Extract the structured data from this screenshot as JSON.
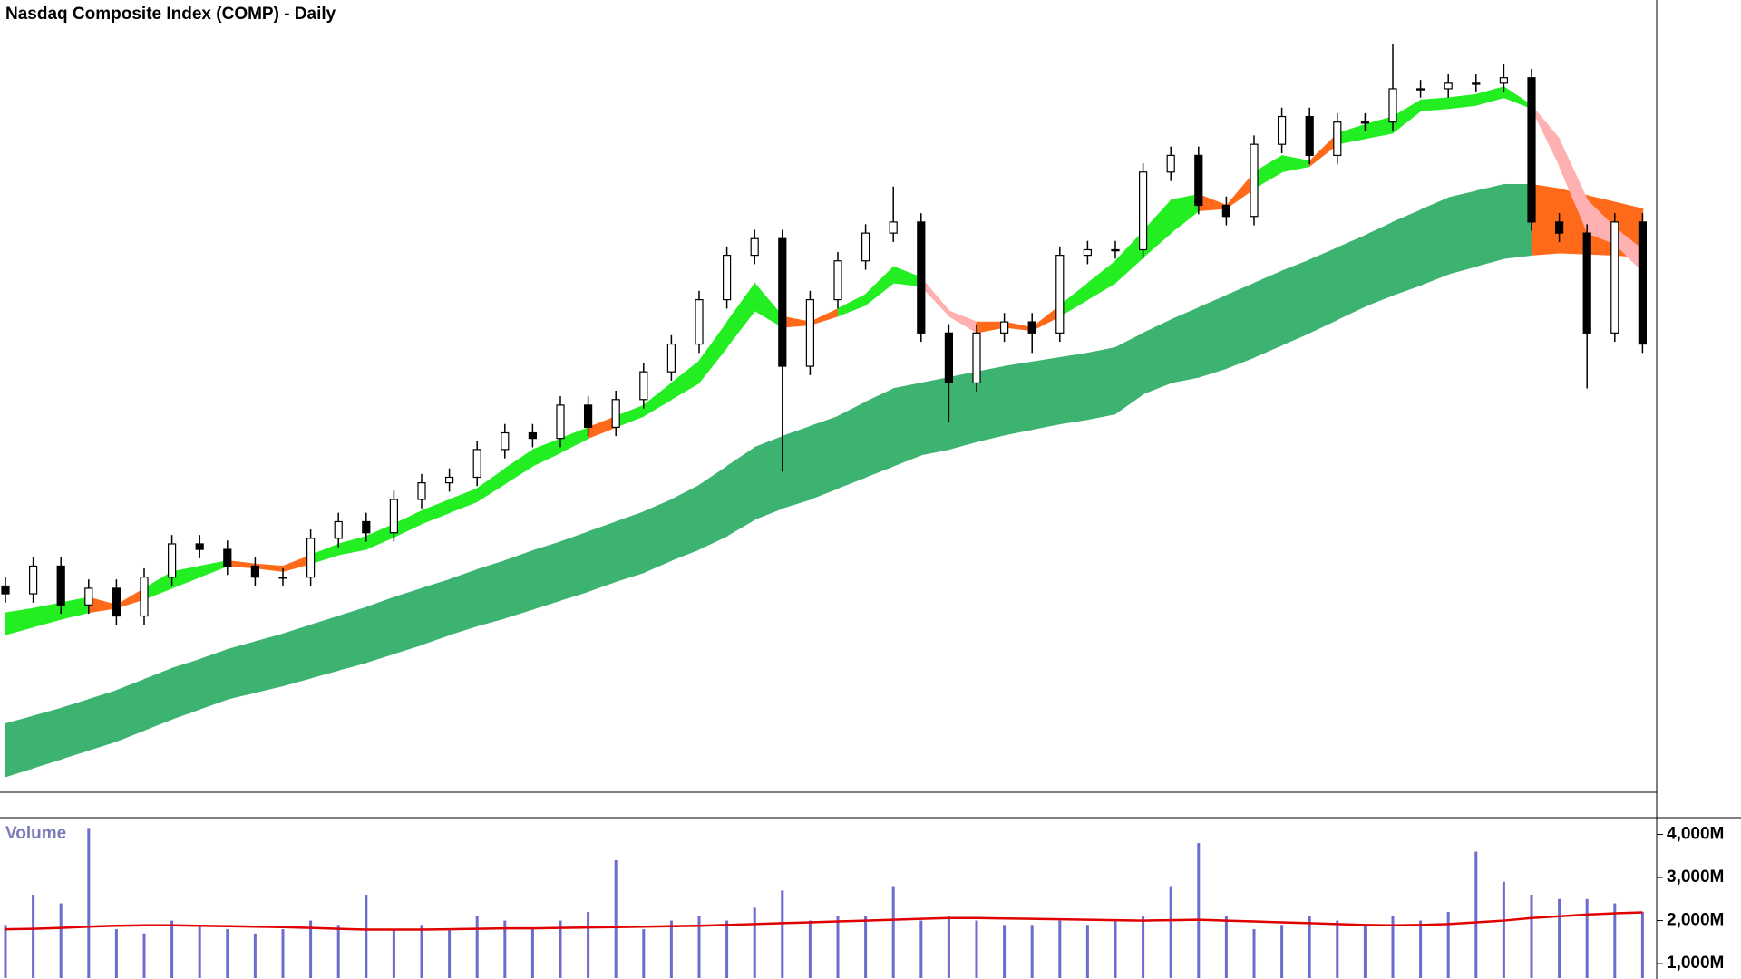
{
  "chart_data": [
    {
      "type": "candlestick",
      "title": "Nasdaq Composite Index (COMP) - Daily",
      "ylim": [
        0,
        713
      ],
      "up_color": "#ffffff",
      "down_color": "#000000",
      "wick_color": "#000000",
      "open": [
        185,
        178,
        203,
        168,
        183,
        158,
        193,
        223,
        218,
        203,
        193,
        193,
        228,
        243,
        233,
        263,
        278,
        283,
        308,
        323,
        318,
        348,
        328,
        353,
        378,
        403,
        443,
        483,
        498,
        383,
        443,
        478,
        503,
        513,
        413,
        368,
        413,
        423,
        413,
        483,
        488,
        488,
        558,
        573,
        528,
        518,
        583,
        608,
        573,
        603,
        603,
        633,
        633,
        638,
        638,
        643,
        513,
        503,
        413,
        513
      ],
      "high": [
        193,
        211,
        211,
        191,
        191,
        201,
        231,
        231,
        226,
        211,
        201,
        236,
        251,
        251,
        271,
        286,
        291,
        316,
        331,
        331,
        356,
        356,
        361,
        386,
        411,
        451,
        491,
        506,
        506,
        451,
        486,
        511,
        545,
        521,
        421,
        421,
        431,
        431,
        491,
        496,
        496,
        566,
        581,
        581,
        536,
        591,
        616,
        616,
        611,
        611,
        673,
        641,
        646,
        646,
        655,
        651,
        521,
        511,
        521,
        521
      ],
      "low": [
        170,
        170,
        160,
        160,
        150,
        150,
        185,
        210,
        195,
        185,
        185,
        185,
        220,
        225,
        225,
        255,
        270,
        275,
        300,
        310,
        310,
        320,
        320,
        345,
        370,
        395,
        435,
        475,
        288,
        375,
        435,
        470,
        495,
        405,
        333,
        360,
        405,
        395,
        405,
        475,
        480,
        480,
        550,
        520,
        510,
        510,
        575,
        565,
        565,
        595,
        595,
        625,
        625,
        630,
        630,
        505,
        495,
        363,
        405,
        395
      ],
      "close": [
        178,
        203,
        168,
        183,
        158,
        193,
        223,
        218,
        203,
        193,
        193,
        228,
        243,
        233,
        263,
        278,
        283,
        308,
        323,
        318,
        348,
        328,
        353,
        378,
        403,
        443,
        483,
        498,
        383,
        443,
        478,
        503,
        513,
        413,
        368,
        413,
        423,
        413,
        483,
        488,
        488,
        558,
        573,
        528,
        518,
        583,
        608,
        573,
        603,
        603,
        633,
        633,
        638,
        638,
        643,
        513,
        503,
        413,
        513,
        403
      ],
      "ribbons": [
        {
          "upper": [
            61,
            68,
            75,
            83,
            91,
            101,
            111,
            119,
            128,
            135,
            142,
            150,
            158,
            166,
            175,
            183,
            191,
            200,
            208,
            217,
            225,
            234,
            243,
            252,
            263,
            276,
            293,
            310,
            320,
            329,
            338,
            351,
            363,
            368,
            373,
            378,
            383,
            387,
            391,
            395,
            400,
            413,
            425,
            436,
            447,
            458,
            469,
            479,
            490,
            501,
            513,
            524,
            535,
            541,
            547,
            547,
            543,
            537,
            531,
            525
          ],
          "lower": [
            13,
            21,
            29,
            37,
            45,
            55,
            65,
            74,
            83,
            89,
            95,
            102,
            109,
            116,
            124,
            132,
            141,
            149,
            156,
            164,
            172,
            180,
            189,
            197,
            208,
            218,
            230,
            245,
            255,
            263,
            273,
            283,
            293,
            303,
            308,
            315,
            321,
            326,
            331,
            335,
            340,
            358,
            368,
            373,
            381,
            391,
            402,
            413,
            425,
            437,
            447,
            456,
            466,
            473,
            480,
            483,
            485,
            484,
            483,
            481
          ],
          "colors": [
            "#3cb371",
            "#3cb371",
            "#3cb371",
            "#3cb371",
            "#3cb371",
            "#3cb371",
            "#3cb371",
            "#3cb371",
            "#3cb371",
            "#3cb371",
            "#3cb371",
            "#3cb371",
            "#3cb371",
            "#3cb371",
            "#3cb371",
            "#3cb371",
            "#3cb371",
            "#3cb371",
            "#3cb371",
            "#3cb371",
            "#3cb371",
            "#3cb371",
            "#3cb371",
            "#3cb371",
            "#3cb371",
            "#3cb371",
            "#3cb371",
            "#3cb371",
            "#3cb371",
            "#3cb371",
            "#3cb371",
            "#3cb371",
            "#3cb371",
            "#3cb371",
            "#3cb371",
            "#3cb371",
            "#3cb371",
            "#3cb371",
            "#3cb371",
            "#3cb371",
            "#3cb371",
            "#3cb371",
            "#3cb371",
            "#3cb371",
            "#3cb371",
            "#3cb371",
            "#3cb371",
            "#3cb371",
            "#3cb371",
            "#3cb371",
            "#3cb371",
            "#3cb371",
            "#3cb371",
            "#3cb371",
            "#3cb371",
            "#ff6a1a",
            "#ff6a1a",
            "#ff6a1a",
            "#ff6a1a",
            "#ff6a1a"
          ]
        },
        {
          "upper": [
            161,
            165,
            170,
            175,
            168,
            183,
            198,
            203,
            208,
            205,
            203,
            213,
            223,
            230,
            241,
            253,
            263,
            273,
            291,
            308,
            318,
            328,
            338,
            348,
            368,
            388,
            423,
            458,
            428,
            423,
            435,
            448,
            473,
            463,
            433,
            423,
            423,
            418,
            438,
            458,
            478,
            505,
            533,
            538,
            528,
            558,
            573,
            568,
            593,
            601,
            608,
            623,
            625,
            628,
            635,
            618,
            588,
            533,
            508,
            488
          ],
          "lower": [
            141,
            148,
            155,
            161,
            165,
            173,
            183,
            193,
            203,
            201,
            198,
            205,
            213,
            218,
            229,
            241,
            251,
            261,
            277,
            293,
            305,
            318,
            328,
            338,
            353,
            368,
            400,
            433,
            418,
            420,
            428,
            438,
            458,
            455,
            428,
            413,
            418,
            415,
            428,
            443,
            458,
            481,
            503,
            523,
            525,
            543,
            558,
            563,
            583,
            588,
            593,
            613,
            615,
            618,
            625,
            615,
            563,
            503,
            493,
            468
          ],
          "colors": [
            "#22ee22",
            "#22ee22",
            "#22ee22",
            "#ff6a1a",
            "#ff6a1a",
            "#22ee22",
            "#22ee22",
            "#22ee22",
            "#ff6a1a",
            "#ff6a1a",
            "#ff6a1a",
            "#22ee22",
            "#22ee22",
            "#22ee22",
            "#22ee22",
            "#22ee22",
            "#22ee22",
            "#22ee22",
            "#22ee22",
            "#22ee22",
            "#22ee22",
            "#ff6a1a",
            "#22ee22",
            "#22ee22",
            "#22ee22",
            "#22ee22",
            "#22ee22",
            "#22ee22",
            "#ff6a1a",
            "#ff6a1a",
            "#22ee22",
            "#22ee22",
            "#22ee22",
            "#ffb0b0",
            "#ffb0b0",
            "#ff6a1a",
            "#ff6a1a",
            "#ff6a1a",
            "#22ee22",
            "#22ee22",
            "#22ee22",
            "#22ee22",
            "#22ee22",
            "#ff6a1a",
            "#ff6a1a",
            "#22ee22",
            "#22ee22",
            "#ff6a1a",
            "#22ee22",
            "#22ee22",
            "#22ee22",
            "#22ee22",
            "#22ee22",
            "#22ee22",
            "#22ee22",
            "#ffb0b0",
            "#ffb0b0",
            "#ffb0b0",
            "#ffb0b0",
            "#ffb0b0"
          ]
        }
      ]
    },
    {
      "type": "bar",
      "title": "Volume",
      "color": "#6b6bd0",
      "values": [
        1900,
        2600,
        2400,
        4150,
        1800,
        1700,
        2000,
        1900,
        1800,
        1700,
        1800,
        2000,
        1900,
        2600,
        1800,
        1900,
        1800,
        2100,
        2000,
        1800,
        2000,
        2200,
        3400,
        1800,
        2000,
        2100,
        2000,
        2300,
        2700,
        2000,
        2100,
        2100,
        2800,
        2000,
        2100,
        2000,
        1900,
        1900,
        2000,
        1900,
        2000,
        2100,
        2800,
        3800,
        2100,
        1800,
        1900,
        2100,
        2000,
        1900,
        2100,
        2000,
        2200,
        3600,
        2900,
        2600,
        2500,
        2500,
        2400,
        2200
      ],
      "average": {
        "color": "#e00000",
        "values": [
          1800,
          1810,
          1830,
          1860,
          1880,
          1890,
          1890,
          1880,
          1870,
          1860,
          1850,
          1830,
          1810,
          1790,
          1790,
          1790,
          1800,
          1810,
          1820,
          1820,
          1830,
          1840,
          1850,
          1860,
          1870,
          1880,
          1900,
          1920,
          1940,
          1960,
          1980,
          2000,
          2020,
          2040,
          2060,
          2060,
          2050,
          2040,
          2030,
          2020,
          2010,
          2000,
          2010,
          2020,
          2000,
          1980,
          1960,
          1940,
          1920,
          1900,
          1890,
          1900,
          1920,
          1960,
          2000,
          2060,
          2100,
          2140,
          2170,
          2190
        ]
      },
      "ylim": [
        665,
        4390
      ],
      "yticks": [
        {
          "value": 1000,
          "label": "1,000M"
        },
        {
          "value": 2000,
          "label": "2,000M"
        },
        {
          "value": 3000,
          "label": "3,000M"
        },
        {
          "value": 4000,
          "label": "4,000M"
        }
      ]
    }
  ]
}
